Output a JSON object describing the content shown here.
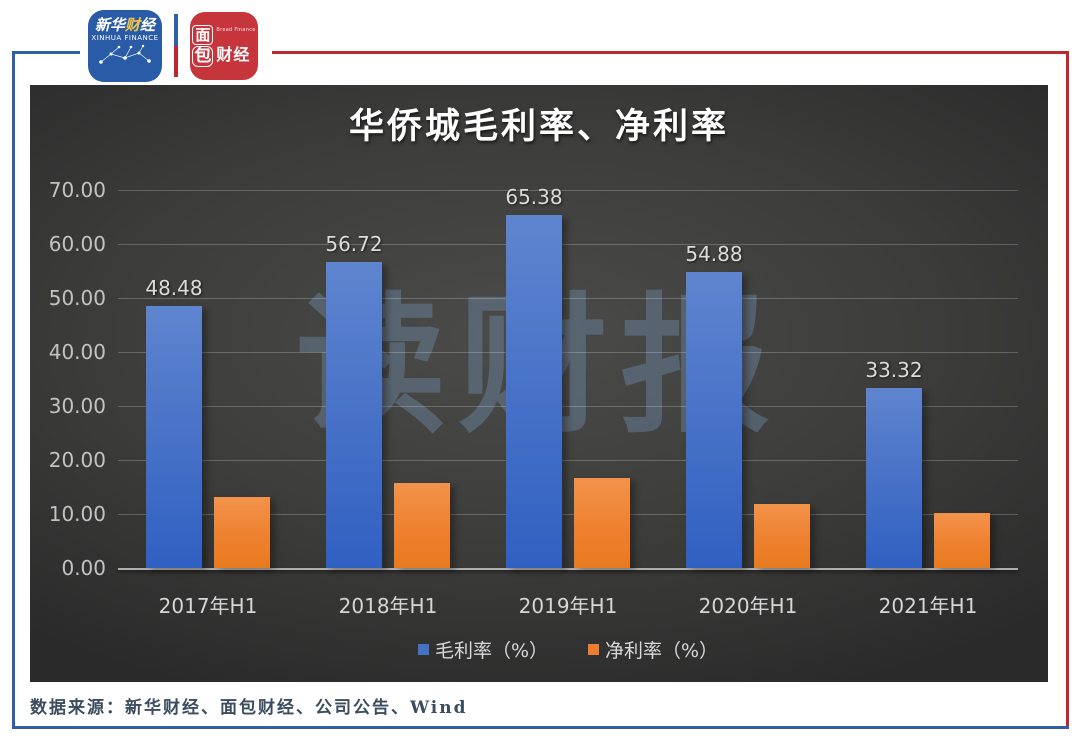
{
  "header": {
    "xinhua_logo": {
      "p1": "新华",
      "p2": "财",
      "p3": "经",
      "line2": "XINHUA FINANCE"
    },
    "bread_logo": {
      "char_top": "面",
      "char_bottom": "包",
      "chars_right": "财经",
      "subtext": "Bread Finance"
    }
  },
  "chart_data": {
    "type": "bar",
    "title": "华侨城毛利率、净利率",
    "categories": [
      "2017年H1",
      "2018年H1",
      "2019年H1",
      "2020年H1",
      "2021年H1"
    ],
    "series": [
      {
        "key": "gross-margin",
        "name": "毛利率（%）",
        "color": "#4472c4",
        "values": [
          48.48,
          56.72,
          65.38,
          54.88,
          33.32
        ],
        "labels_shown": true
      },
      {
        "key": "net-margin",
        "name": "净利率（%）",
        "color": "#ed7d31",
        "values": [
          13.1,
          15.7,
          16.6,
          11.9,
          10.2
        ],
        "labels_shown": false
      }
    ],
    "ylim": [
      0,
      70
    ],
    "ytick_step": 10,
    "ytick_format": "0.00",
    "grid": "horizontal",
    "legend_position": "bottom"
  },
  "watermark": {
    "text": "读财报"
  },
  "footer": {
    "source": "数据来源：新华财经、面包财经、公司公告、Wind"
  },
  "colors": {
    "frame_blue": "#2e5fa8",
    "frame_red": "#c0272d",
    "xinhua_logo_bg": "#2a5ba7",
    "xinhua_gold": "#f5c542",
    "bread_logo_bg": "#c5353b",
    "panel_center": "#4b4b49",
    "panel_edge": "#2a2a2a"
  }
}
